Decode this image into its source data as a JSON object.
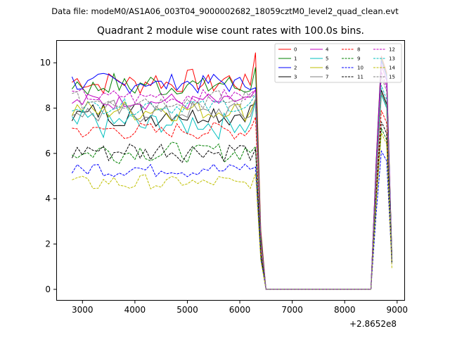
{
  "figure": {
    "suptitle": "Data file: modeM0/AS1A06_003T04_9000002682_18059cztM0_level2_quad_clean.evt",
    "title": "Quadrant 2 module wise count rates with 100.0s bins.",
    "x_offset_label": "+2.8652e8"
  },
  "chart_data": {
    "type": "line",
    "title": "Quadrant 2 module wise count rates with 100.0s bins.",
    "xlabel": "",
    "ylabel": "",
    "x_offset": "+2.8652e8",
    "xlim": [
      2500,
      9150
    ],
    "ylim": [
      -0.5,
      11
    ],
    "x_ticks": [
      3000,
      4000,
      5000,
      6000,
      7000,
      8000,
      9000
    ],
    "y_ticks": [
      0,
      2,
      4,
      6,
      8,
      10
    ],
    "grid": false,
    "legend_position": "top-right",
    "x": [
      2800,
      2900,
      3000,
      3100,
      3200,
      3300,
      3400,
      3500,
      3600,
      3700,
      3800,
      3900,
      4000,
      4100,
      4200,
      4300,
      4400,
      4500,
      4600,
      4700,
      4800,
      4900,
      5000,
      5100,
      5200,
      5300,
      5400,
      5500,
      5600,
      5700,
      5800,
      5900,
      6000,
      6100,
      6200,
      6300,
      6400,
      6500,
      6600,
      6700,
      6800,
      6900,
      7000,
      7100,
      7200,
      7300,
      7400,
      7500,
      7600,
      7700,
      7800,
      7900,
      8000,
      8100,
      8200,
      8300,
      8400,
      8500,
      8600,
      8700,
      8800,
      8900
    ],
    "series": [
      {
        "name": "0",
        "color": "#ff0000",
        "dash": "solid",
        "base": 9.15,
        "amp": 0.3,
        "peak_6300": 10.45,
        "peak_8800": 10.3,
        "end": 1.5
      },
      {
        "name": "1",
        "color": "#008000",
        "dash": "solid",
        "base": 9.0,
        "amp": 0.3,
        "peak_6300": 9.8,
        "peak_8800": 10.2,
        "end": 1.5
      },
      {
        "name": "2",
        "color": "#0000ff",
        "dash": "solid",
        "base": 9.1,
        "amp": 0.25,
        "peak_6300": 8.9,
        "peak_8800": 10.1,
        "end": 1.4
      },
      {
        "name": "3",
        "color": "#000000",
        "dash": "solid",
        "base": 7.75,
        "amp": 0.3,
        "peak_6300": 8.2,
        "peak_8800": 8.8,
        "end": 1.3
      },
      {
        "name": "4",
        "color": "#c000c0",
        "dash": "solid",
        "base": 8.3,
        "amp": 0.2,
        "peak_6300": 8.8,
        "peak_8800": 9.9,
        "end": 1.4
      },
      {
        "name": "5",
        "color": "#00bfbf",
        "dash": "solid",
        "base": 7.3,
        "amp": 0.35,
        "peak_6300": 8.3,
        "peak_8800": 8.6,
        "end": 1.4
      },
      {
        "name": "6",
        "color": "#bfbf00",
        "dash": "solid",
        "base": 7.9,
        "amp": 0.25,
        "peak_6300": 8.4,
        "peak_8800": 8.7,
        "end": 1.4
      },
      {
        "name": "7",
        "color": "#808080",
        "dash": "solid",
        "base": 7.8,
        "amp": 0.3,
        "peak_6300": 8.4,
        "peak_8800": 8.7,
        "end": 1.3
      },
      {
        "name": "8",
        "color": "#ff0000",
        "dash": "dashed",
        "base": 7.0,
        "amp": 0.2,
        "peak_6300": 7.6,
        "peak_8800": 7.9,
        "end": 1.3
      },
      {
        "name": "9",
        "color": "#008000",
        "dash": "dashed",
        "base": 6.05,
        "amp": 0.25,
        "peak_6300": 6.3,
        "peak_8800": 7.1,
        "end": 1.2
      },
      {
        "name": "10",
        "color": "#0000ff",
        "dash": "dashed",
        "base": 5.3,
        "amp": 0.2,
        "peak_6300": 5.4,
        "peak_8800": 6.1,
        "end": 1.1
      },
      {
        "name": "11",
        "color": "#000000",
        "dash": "dashed",
        "base": 6.1,
        "amp": 0.25,
        "peak_6300": 6.2,
        "peak_8800": 7.4,
        "end": 1.2
      },
      {
        "name": "12",
        "color": "#c000c0",
        "dash": "dashed",
        "base": 8.5,
        "amp": 0.2,
        "peak_6300": 8.8,
        "peak_8800": 9.6,
        "end": 1.3
      },
      {
        "name": "13",
        "color": "#00bfbf",
        "dash": "dashed",
        "base": 8.1,
        "amp": 0.2,
        "peak_6300": 8.6,
        "peak_8800": 9.0,
        "end": 1.3
      },
      {
        "name": "14",
        "color": "#bfbf00",
        "dash": "dashed",
        "base": 4.7,
        "amp": 0.2,
        "peak_6300": 5.1,
        "peak_8800": 6.9,
        "end": 0.9
      },
      {
        "name": "15",
        "color": "#808080",
        "dash": "dashed",
        "base": 8.35,
        "amp": 0.25,
        "peak_6300": 8.6,
        "peak_8800": 9.4,
        "end": 1.3
      }
    ]
  }
}
